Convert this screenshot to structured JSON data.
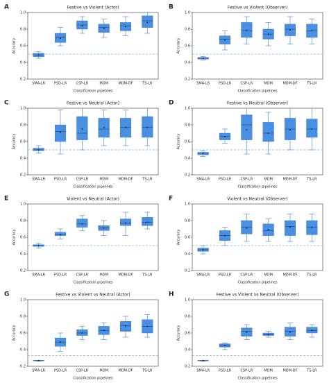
{
  "chart_data": [
    {
      "type": "box",
      "label": "A",
      "title": "Festive vs Violent (Actor)",
      "x_label": "Classification pipelines",
      "y_label": "Accuracy",
      "categories": [
        "SMA-LR",
        "PSD-LR",
        "CSP-LR",
        "MDM",
        "MDM-DF",
        "TS-LR"
      ],
      "color": "#4a90e2",
      "chance_level": 0.5,
      "ylim": [
        0.2,
        1.0
      ],
      "yticks": [
        0.2,
        0.4,
        0.6,
        0.8,
        {
          "value": 1,
          "label": "1.0"
        }
      ],
      "stats": [
        {
          "min": 0.45,
          "q1": 0.47,
          "median": 0.49,
          "q3": 0.51,
          "max": 0.53,
          "mean": 0.49
        },
        {
          "min": 0.6,
          "q1": 0.64,
          "median": 0.7,
          "q3": 0.75,
          "max": 0.82,
          "mean": 0.69
        },
        {
          "min": 0.75,
          "q1": 0.8,
          "median": 0.85,
          "q3": 0.9,
          "max": 0.95,
          "mean": 0.84
        },
        {
          "min": 0.7,
          "q1": 0.76,
          "median": 0.82,
          "q3": 0.86,
          "max": 0.92,
          "mean": 0.81
        },
        {
          "min": 0.72,
          "q1": 0.78,
          "median": 0.84,
          "q3": 0.88,
          "max": 0.95,
          "mean": 0.83
        },
        {
          "min": 0.75,
          "q1": 0.82,
          "median": 0.9,
          "q3": 0.96,
          "max": 1.0,
          "mean": 0.88
        }
      ]
    },
    {
      "type": "box",
      "label": "B",
      "title": "Festive vs Violent (Observer)",
      "x_label": "Classification pipelines",
      "y_label": "Accuracy",
      "categories": [
        "SMA-LR",
        "PSD-LR",
        "CSP-LR",
        "MDM",
        "MDM-DF",
        "TS-LR"
      ],
      "color": "#4a90e2",
      "chance_level": 0.5,
      "ylim": [
        0.2,
        1.0
      ],
      "yticks": [
        0.2,
        0.4,
        0.6,
        0.8,
        {
          "value": 1,
          "label": "1.0"
        }
      ],
      "stats": [
        {
          "min": 0.43,
          "q1": 0.44,
          "median": 0.45,
          "q3": 0.46,
          "max": 0.47,
          "mean": 0.45
        },
        {
          "min": 0.55,
          "q1": 0.62,
          "median": 0.68,
          "q3": 0.72,
          "max": 0.78,
          "mean": 0.67
        },
        {
          "min": 0.62,
          "q1": 0.7,
          "median": 0.78,
          "q3": 0.88,
          "max": 0.95,
          "mean": 0.78
        },
        {
          "min": 0.6,
          "q1": 0.68,
          "median": 0.74,
          "q3": 0.8,
          "max": 0.88,
          "mean": 0.74
        },
        {
          "min": 0.62,
          "q1": 0.72,
          "median": 0.8,
          "q3": 0.86,
          "max": 0.95,
          "mean": 0.79
        },
        {
          "min": 0.62,
          "q1": 0.7,
          "median": 0.78,
          "q3": 0.86,
          "max": 0.92,
          "mean": 0.78
        }
      ]
    },
    {
      "type": "box",
      "label": "C",
      "title": "Festive vs Neutral (Actor)",
      "x_label": "Classification pipelines",
      "y_label": "Accuracy",
      "categories": [
        "SMA-LR",
        "PSD-LR",
        "CSP-LR",
        "MDM",
        "MDM-DF",
        "TS-LR"
      ],
      "color": "#4a90e2",
      "chance_level": 0.5,
      "ylim": [
        0.2,
        1.0
      ],
      "yticks": [
        0.2,
        0.4,
        0.6,
        0.8,
        {
          "value": 1,
          "label": "1.0"
        }
      ],
      "stats": [
        {
          "min": 0.46,
          "q1": 0.49,
          "median": 0.5,
          "q3": 0.52,
          "max": 0.55,
          "mean": 0.5
        },
        {
          "min": 0.45,
          "q1": 0.6,
          "median": 0.72,
          "q3": 0.8,
          "max": 0.98,
          "mean": 0.71
        },
        {
          "min": 0.5,
          "q1": 0.62,
          "median": 0.7,
          "q3": 0.9,
          "max": 1.0,
          "mean": 0.75
        },
        {
          "min": 0.55,
          "q1": 0.65,
          "median": 0.75,
          "q3": 0.88,
          "max": 0.98,
          "mean": 0.77
        },
        {
          "min": 0.55,
          "q1": 0.65,
          "median": 0.77,
          "q3": 0.88,
          "max": 0.98,
          "mean": 0.77
        },
        {
          "min": 0.55,
          "q1": 0.65,
          "median": 0.77,
          "q3": 0.9,
          "max": 1.0,
          "mean": 0.77
        }
      ]
    },
    {
      "type": "box",
      "label": "D",
      "title": "Festive vs Neutral (Observer)",
      "x_label": "Classification pipelines",
      "y_label": "Accuracy",
      "categories": [
        "SMA-LR",
        "PSD-LR",
        "CSP-LR",
        "MDM",
        "MDM-DF",
        "TS-LR"
      ],
      "color": "#4a90e2",
      "chance_level": 0.5,
      "ylim": [
        0.2,
        1.0
      ],
      "yticks": [
        0.2,
        0.4,
        0.6,
        0.8,
        {
          "value": 1,
          "label": "1.0"
        }
      ],
      "stats": [
        {
          "min": 0.42,
          "q1": 0.44,
          "median": 0.46,
          "q3": 0.47,
          "max": 0.49,
          "mean": 0.46
        },
        {
          "min": 0.58,
          "q1": 0.62,
          "median": 0.66,
          "q3": 0.7,
          "max": 0.75,
          "mean": 0.66
        },
        {
          "min": 0.45,
          "q1": 0.62,
          "median": 0.8,
          "q3": 0.92,
          "max": 1.0,
          "mean": 0.74
        },
        {
          "min": 0.45,
          "q1": 0.6,
          "median": 0.7,
          "q3": 0.83,
          "max": 0.95,
          "mean": 0.7
        },
        {
          "min": 0.5,
          "q1": 0.62,
          "median": 0.75,
          "q3": 0.88,
          "max": 1.0,
          "mean": 0.74
        },
        {
          "min": 0.5,
          "q1": 0.65,
          "median": 0.75,
          "q3": 0.87,
          "max": 1.0,
          "mean": 0.75
        }
      ]
    },
    {
      "type": "box",
      "label": "E",
      "title": "Violent vs Neutral (Actor)",
      "x_label": "Classification pipelines",
      "y_label": "Accuracy",
      "categories": [
        "SMA-LR",
        "PSD-LR",
        "CSP-LR",
        "MDM",
        "MDM-DF",
        "TS-LR"
      ],
      "color": "#4a90e2",
      "chance_level": 0.5,
      "ylim": [
        0.2,
        1.0
      ],
      "yticks": [
        0.2,
        0.4,
        0.6,
        0.8,
        {
          "value": 1,
          "label": "1.0"
        }
      ],
      "stats": [
        {
          "min": 0.47,
          "q1": 0.49,
          "median": 0.5,
          "q3": 0.51,
          "max": 0.53,
          "mean": 0.5
        },
        {
          "min": 0.58,
          "q1": 0.62,
          "median": 0.63,
          "q3": 0.66,
          "max": 0.7,
          "mean": 0.63
        },
        {
          "min": 0.68,
          "q1": 0.72,
          "median": 0.76,
          "q3": 0.82,
          "max": 0.86,
          "mean": 0.76
        },
        {
          "min": 0.62,
          "q1": 0.68,
          "median": 0.71,
          "q3": 0.74,
          "max": 0.8,
          "mean": 0.71
        },
        {
          "min": 0.62,
          "q1": 0.74,
          "median": 0.77,
          "q3": 0.82,
          "max": 0.9,
          "mean": 0.77
        },
        {
          "min": 0.7,
          "q1": 0.74,
          "median": 0.78,
          "q3": 0.84,
          "max": 0.9,
          "mean": 0.78
        }
      ]
    },
    {
      "type": "box",
      "label": "F",
      "title": "Violent vs Neutral (Observer)",
      "x_label": "Classification pipelines",
      "y_label": "Accuracy",
      "categories": [
        "SMA-LR",
        "PSD-LR",
        "CSP-LR",
        "MDM",
        "MDM-DF",
        "TS-LR"
      ],
      "color": "#4a90e2",
      "chance_level": 0.5,
      "ylim": [
        0.2,
        1.0
      ],
      "yticks": [
        0.2,
        0.4,
        0.6,
        0.8,
        {
          "value": 1,
          "label": "1.0"
        }
      ],
      "stats": [
        {
          "min": 0.4,
          "q1": 0.43,
          "median": 0.45,
          "q3": 0.47,
          "max": 0.5,
          "mean": 0.45
        },
        {
          "min": 0.5,
          "q1": 0.56,
          "median": 0.62,
          "q3": 0.68,
          "max": 0.72,
          "mean": 0.62
        },
        {
          "min": 0.55,
          "q1": 0.64,
          "median": 0.72,
          "q3": 0.8,
          "max": 0.88,
          "mean": 0.71
        },
        {
          "min": 0.55,
          "q1": 0.62,
          "median": 0.68,
          "q3": 0.76,
          "max": 0.82,
          "mean": 0.69
        },
        {
          "min": 0.55,
          "q1": 0.62,
          "median": 0.73,
          "q3": 0.8,
          "max": 0.88,
          "mean": 0.72
        },
        {
          "min": 0.55,
          "q1": 0.63,
          "median": 0.72,
          "q3": 0.8,
          "max": 0.88,
          "mean": 0.72
        }
      ]
    },
    {
      "type": "box",
      "label": "G",
      "title": "Festive vs Violent vs Neutral (Actor)",
      "x_label": "Classification pipelines",
      "y_label": "Accuracy",
      "categories": [
        "SMA-LR",
        "PSD-LR",
        "CSP-LR",
        "MDM",
        "MDM-DF",
        "TS-LR"
      ],
      "color": "#4a90e2",
      "chance_level": 0.33,
      "ylim": [
        0.2,
        1.0
      ],
      "yticks": [
        0.2,
        0.4,
        0.6,
        0.8,
        {
          "value": 1,
          "label": "1.0"
        }
      ],
      "stats": [
        {
          "min": 0.26,
          "q1": 0.27,
          "median": 0.27,
          "q3": 0.27,
          "max": 0.27,
          "mean": 0.27
        },
        {
          "min": 0.38,
          "q1": 0.44,
          "median": 0.49,
          "q3": 0.54,
          "max": 0.6,
          "mean": 0.49
        },
        {
          "min": 0.52,
          "q1": 0.57,
          "median": 0.6,
          "q3": 0.64,
          "max": 0.68,
          "mean": 0.6
        },
        {
          "min": 0.52,
          "q1": 0.58,
          "median": 0.63,
          "q3": 0.68,
          "max": 0.72,
          "mean": 0.63
        },
        {
          "min": 0.55,
          "q1": 0.62,
          "median": 0.69,
          "q3": 0.74,
          "max": 0.8,
          "mean": 0.68
        },
        {
          "min": 0.55,
          "q1": 0.6,
          "median": 0.68,
          "q3": 0.76,
          "max": 0.82,
          "mean": 0.68
        }
      ]
    },
    {
      "type": "box",
      "label": "H",
      "title": "Festive vs Violent vs Neutral (Observer)",
      "x_label": "Classification pipelines",
      "y_label": "Accuracy",
      "categories": [
        "SMA-LR",
        "PSD-LR",
        "CSP-LR",
        "MDM",
        "MDM-DF",
        "TS-LR"
      ],
      "color": "#4a90e2",
      "chance_level": 0.33,
      "ylim": [
        0.2,
        1.0
      ],
      "yticks": [
        0.2,
        0.4,
        0.6,
        0.8,
        {
          "value": 1,
          "label": "1.0"
        }
      ],
      "stats": [
        {
          "min": 0.26,
          "q1": 0.27,
          "median": 0.27,
          "q3": 0.27,
          "max": 0.27,
          "mean": 0.27
        },
        {
          "min": 0.4,
          "q1": 0.43,
          "median": 0.45,
          "q3": 0.47,
          "max": 0.48,
          "mean": 0.45
        },
        {
          "min": 0.52,
          "q1": 0.56,
          "median": 0.62,
          "q3": 0.66,
          "max": 0.7,
          "mean": 0.61
        },
        {
          "min": 0.55,
          "q1": 0.57,
          "median": 0.58,
          "q3": 0.6,
          "max": 0.62,
          "mean": 0.58
        },
        {
          "min": 0.52,
          "q1": 0.56,
          "median": 0.62,
          "q3": 0.67,
          "max": 0.72,
          "mean": 0.61
        },
        {
          "min": 0.55,
          "q1": 0.6,
          "median": 0.63,
          "q3": 0.67,
          "max": 0.7,
          "mean": 0.63
        }
      ]
    }
  ]
}
